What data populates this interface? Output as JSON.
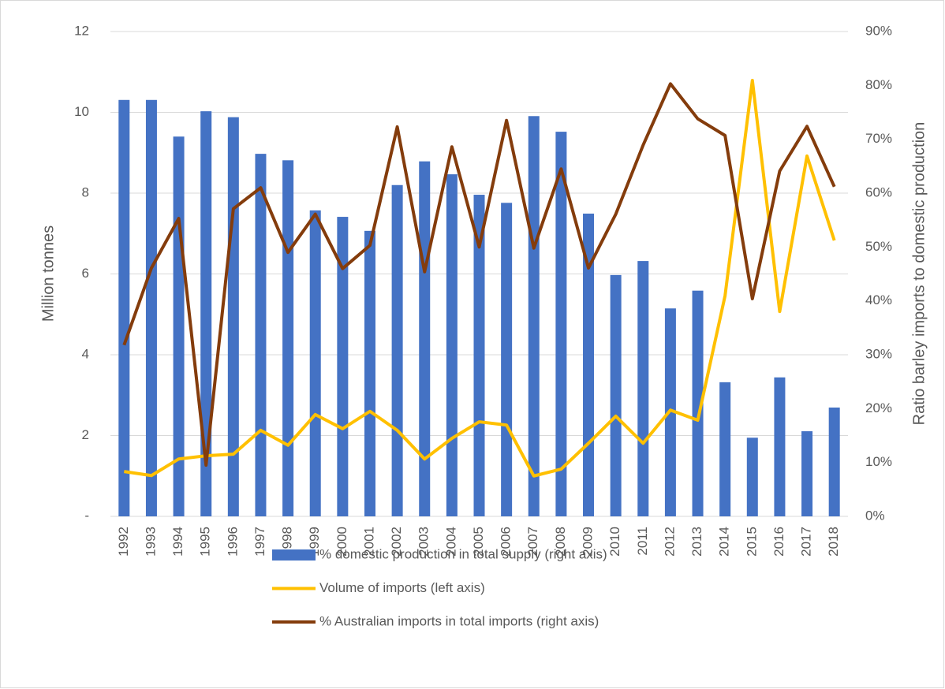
{
  "chart_data": {
    "type": "combo",
    "categories": [
      "1992",
      "1993",
      "1994",
      "1995",
      "1996",
      "1997",
      "1998",
      "1999",
      "2000",
      "2001",
      "2002",
      "2003",
      "2004",
      "2005",
      "2006",
      "2007",
      "2008",
      "2009",
      "2010",
      "2011",
      "2012",
      "2013",
      "2014",
      "2015",
      "2016",
      "2017",
      "2018"
    ],
    "y_label": "Million tonnes",
    "y2_label": "Ratio barley imports to domestic production",
    "ylim": [
      0,
      12
    ],
    "yticks": [
      {
        "value": 0,
        "label": "-"
      },
      2,
      4,
      6,
      8,
      10,
      12
    ],
    "y2lim": [
      0,
      90
    ],
    "y2ticks": [
      {
        "value": 0,
        "label": "0%"
      },
      {
        "value": 10,
        "label": "10%"
      },
      {
        "value": 20,
        "label": "20%"
      },
      {
        "value": 30,
        "label": "30%"
      },
      {
        "value": 40,
        "label": "40%"
      },
      {
        "value": 50,
        "label": "50%"
      },
      {
        "value": 60,
        "label": "60%"
      },
      {
        "value": 70,
        "label": "70%"
      },
      {
        "value": 80,
        "label": "80%"
      },
      {
        "value": 90,
        "label": "90%"
      }
    ],
    "grid": true,
    "legend": "bottom",
    "series": [
      {
        "name": "% domestic production in total supply (right axis)",
        "type": "bar",
        "axis": "y2",
        "color": "#4472c4",
        "values": [
          77.3,
          77.3,
          70.5,
          75.2,
          74.1,
          67.3,
          66.1,
          56.8,
          55.6,
          53.0,
          61.5,
          65.9,
          63.5,
          59.7,
          58.2,
          74.3,
          71.4,
          56.2,
          44.8,
          47.4,
          38.6,
          41.9,
          24.9,
          14.6,
          25.8,
          15.8,
          20.2
        ]
      },
      {
        "name": "Volume of imports (left axis)",
        "type": "line",
        "axis": "y",
        "color": "#ffc000",
        "values": [
          1.11,
          1.01,
          1.42,
          1.5,
          1.54,
          2.13,
          1.76,
          2.52,
          2.17,
          2.6,
          2.13,
          1.42,
          1.93,
          2.34,
          2.26,
          1.0,
          1.17,
          1.81,
          2.48,
          1.81,
          2.63,
          2.38,
          5.46,
          10.79,
          5.07,
          8.92,
          6.83
        ]
      },
      {
        "name": "% Australian imports in total imports (right axis)",
        "type": "line",
        "axis": "y2",
        "color": "#843c0c",
        "values": [
          31.8,
          46.1,
          55.3,
          9.5,
          57.1,
          61.0,
          49.0,
          56.1,
          46.0,
          50.3,
          72.3,
          45.4,
          68.6,
          50.0,
          73.5,
          49.8,
          64.5,
          46.1,
          56.1,
          68.9,
          80.3,
          73.8,
          70.7,
          40.4,
          64.1,
          72.4,
          61.2
        ]
      }
    ]
  }
}
